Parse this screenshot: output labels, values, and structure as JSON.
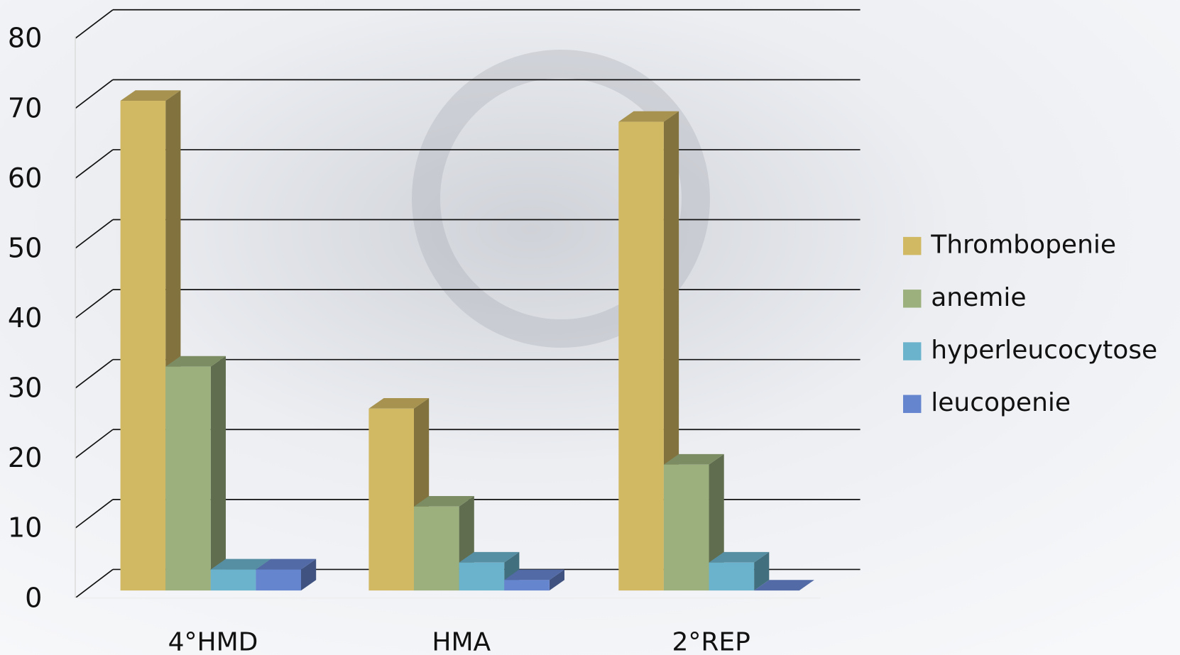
{
  "chart_data": {
    "type": "bar",
    "categories": [
      "4°HMD",
      "HMA",
      "2°REP"
    ],
    "series": [
      {
        "name": "Thrombopenie",
        "color": "#d1b863",
        "values": [
          70,
          26,
          67
        ]
      },
      {
        "name": "anemie",
        "color": "#9bb07d",
        "values": [
          32,
          12,
          18
        ]
      },
      {
        "name": "hyperleucocytose",
        "color": "#6bb3cc",
        "values": [
          3,
          4,
          4
        ]
      },
      {
        "name": "leucopenie",
        "color": "#6685cf",
        "values": [
          3,
          1.5,
          0
        ]
      }
    ],
    "ylim": [
      0,
      80
    ],
    "yticks": [
      0,
      10,
      20,
      30,
      40,
      50,
      60,
      70,
      80
    ],
    "grid": true,
    "legend": "right"
  }
}
